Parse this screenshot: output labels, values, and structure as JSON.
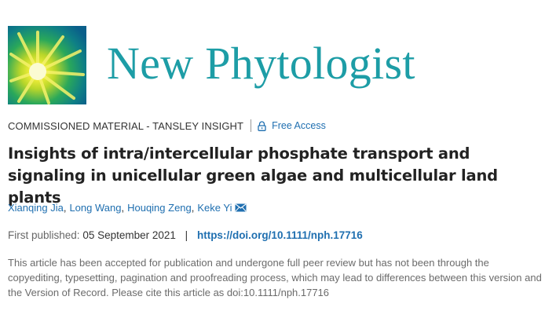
{
  "header": {
    "journal_name": "New Phytologist",
    "brand_color": "#1d9da6"
  },
  "meta": {
    "category": "COMMISSIONED MATERIAL - TANSLEY INSIGHT",
    "access_icon": "lock-icon",
    "access_label": "Free Access"
  },
  "article": {
    "title": "Insights of intra/intercellular phosphate transport and signaling in unicellular green algae and multicellular land plants",
    "authors": [
      "Xianqing Jia",
      "Long Wang",
      "Houqing Zeng",
      "Keke Yi"
    ],
    "corresponding_icon": "mail-icon",
    "first_published_label": "First published:",
    "first_published_date": "05 September 2021",
    "separator": "|",
    "doi_url": "https://doi.org/10.1111/nph.17716",
    "accepted_note": "This article has been accepted for publication and undergone full peer review but has not been through the copyediting, typesetting, pagination and proofreading process, which may lead to differences between this version and the Version of Record. Please cite this article as doi:10.1111/nph.17716"
  },
  "colors": {
    "link": "#1f6fb0",
    "text": "#333333",
    "muted": "#6b6b6b"
  }
}
